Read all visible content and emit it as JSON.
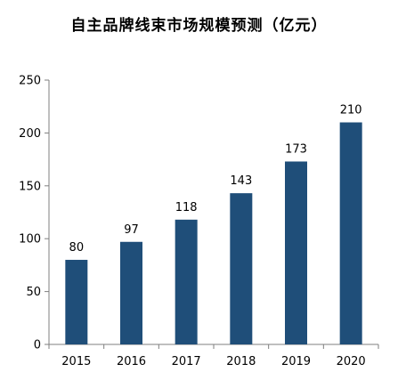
{
  "chart_data": {
    "type": "bar",
    "title": "自主品牌线束市场规模预测（亿元）",
    "xlabel": "",
    "ylabel": "",
    "categories": [
      "2015",
      "2016",
      "2017",
      "2018",
      "2019",
      "2020"
    ],
    "values": [
      80,
      97,
      118,
      143,
      173,
      210
    ],
    "ylim": [
      0,
      250
    ],
    "yticks": [
      0,
      50,
      100,
      150,
      200,
      250
    ],
    "grid": false,
    "legend": "none",
    "bar_color": "#1F4E79",
    "data_labels": [
      "80",
      "97",
      "118",
      "143",
      "173",
      "210"
    ]
  }
}
